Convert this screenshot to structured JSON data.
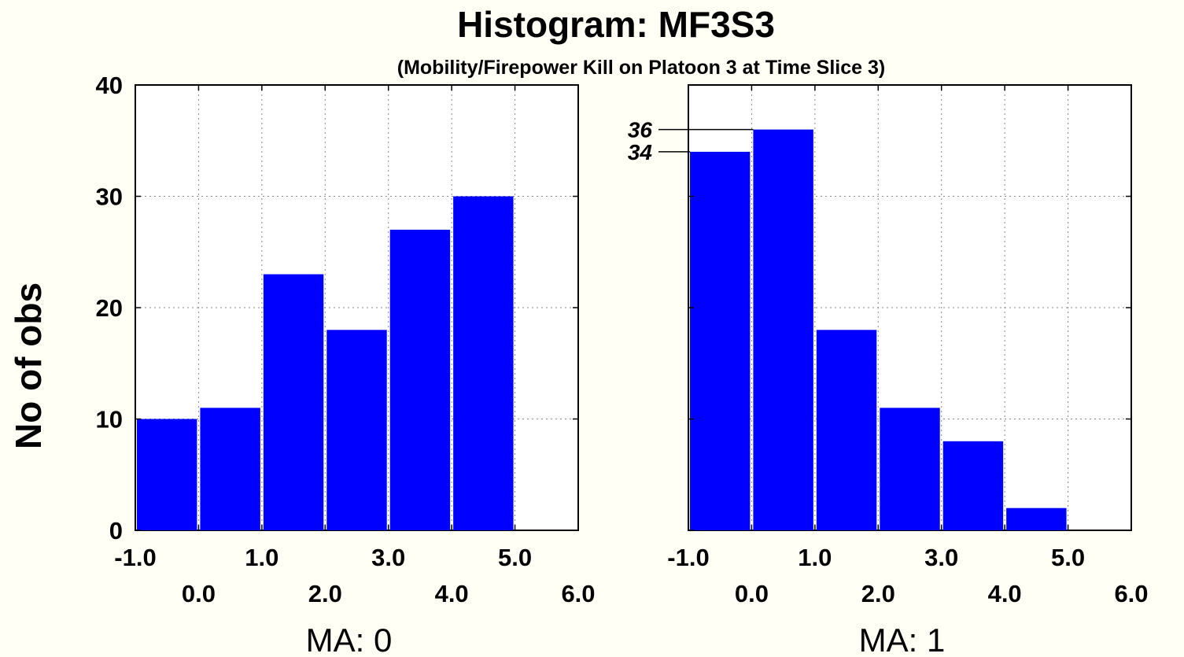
{
  "chart_data": {
    "type": "bar",
    "title": "Histogram: MF3S3",
    "subtitle": "(Mobility/Firepower Kill on Platoon 3 at Time Slice 3)",
    "ylabel": "No of obs",
    "ylim": [
      0,
      40
    ],
    "yticks": [
      "0",
      "10",
      "20",
      "30",
      "40"
    ],
    "xlim": [
      -1.0,
      6.0
    ],
    "xticks_upper": [
      "-1.0",
      "1.0",
      "3.0",
      "5.0"
    ],
    "xticks_lower": [
      "0.0",
      "2.0",
      "4.0",
      "6.0"
    ],
    "grid": true,
    "bar_color": "#0000ff",
    "panels": [
      {
        "label": "MA: 0",
        "bins": [
          -0.5,
          0.5,
          1.5,
          2.5,
          3.5,
          4.5
        ],
        "values": [
          10,
          11,
          23,
          18,
          27,
          30
        ],
        "annotations": []
      },
      {
        "label": "MA: 1",
        "bins": [
          -0.5,
          0.5,
          1.5,
          2.5,
          3.5,
          4.5
        ],
        "values": [
          34,
          36,
          18,
          11,
          8,
          2
        ],
        "annotations": [
          {
            "text": "36",
            "bin_index": 1,
            "value": 36
          },
          {
            "text": "34",
            "bin_index": 0,
            "value": 34
          }
        ]
      }
    ]
  }
}
